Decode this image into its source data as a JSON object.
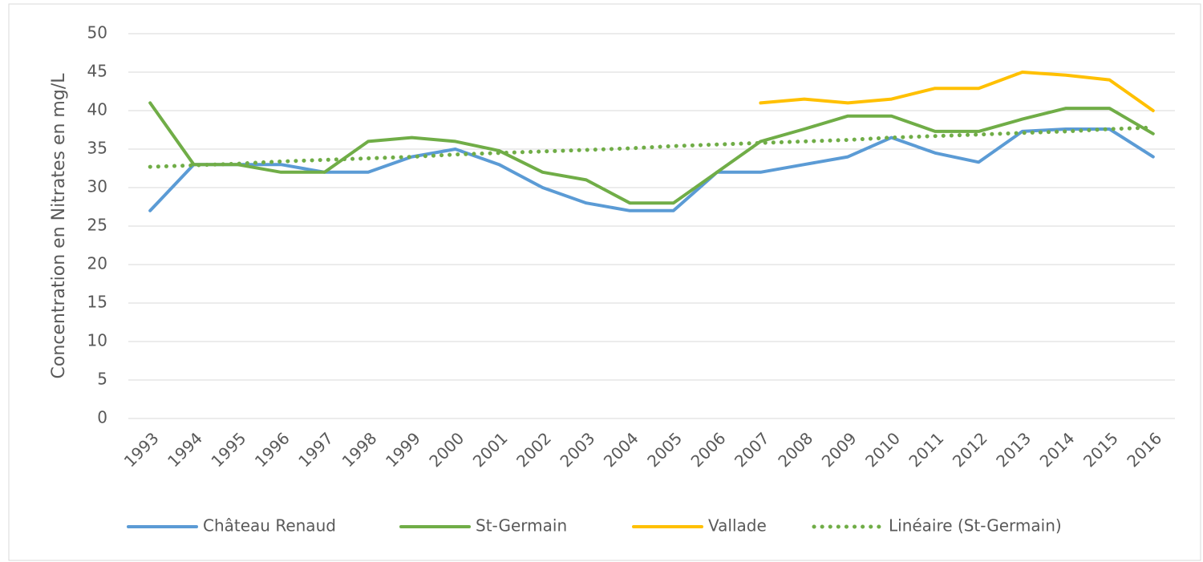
{
  "chart_data": {
    "type": "line",
    "y_label": "Concentration en Nitrates en mg/L",
    "categories": [
      "1993",
      "1994",
      "1995",
      "1996",
      "1997",
      "1998",
      "1999",
      "2000",
      "2001",
      "2002",
      "2003",
      "2004",
      "2005",
      "2006",
      "2007",
      "2008",
      "2009",
      "2010",
      "2011",
      "2012",
      "2013",
      "2014",
      "2015",
      "2016"
    ],
    "series": [
      {
        "name": "Château Renaud",
        "color": "#5b9bd5",
        "style": "solid",
        "values": [
          27,
          33,
          33,
          33,
          32,
          32,
          34,
          35,
          33,
          30,
          28,
          27,
          27,
          32,
          32,
          33,
          34,
          36.5,
          34.5,
          33.3,
          37.3,
          37.6,
          37.6,
          34
        ]
      },
      {
        "name": "St-Germain",
        "color": "#70ad47",
        "style": "solid",
        "values": [
          41,
          33,
          33,
          32,
          32,
          36,
          36.5,
          36,
          34.8,
          32,
          31,
          28,
          28,
          32,
          36,
          37.6,
          39.3,
          39.3,
          37.3,
          37.3,
          38.9,
          40.3,
          40.3,
          37
        ]
      },
      {
        "name": "Vallade",
        "color": "#ffc000",
        "style": "solid",
        "values": [
          null,
          null,
          null,
          null,
          null,
          null,
          null,
          null,
          null,
          null,
          null,
          null,
          null,
          null,
          41,
          41.5,
          41,
          41.5,
          42.9,
          42.9,
          45,
          44.6,
          44,
          40
        ]
      },
      {
        "name": "Linéaire (St-Germain)",
        "color": "#70ad47",
        "style": "dotted",
        "values": [
          32.7,
          32.9,
          33.1,
          33.4,
          33.6,
          33.8,
          34.0,
          34.3,
          34.5,
          34.7,
          34.9,
          35.1,
          35.4,
          35.6,
          35.8,
          36.0,
          36.2,
          36.5,
          36.7,
          36.9,
          37.1,
          37.3,
          37.6,
          37.8
        ]
      }
    ],
    "ylim": [
      0,
      50
    ],
    "yticks": [
      0,
      5,
      10,
      15,
      20,
      25,
      30,
      35,
      40,
      45,
      50
    ],
    "grid": true,
    "legend": "bottom"
  }
}
